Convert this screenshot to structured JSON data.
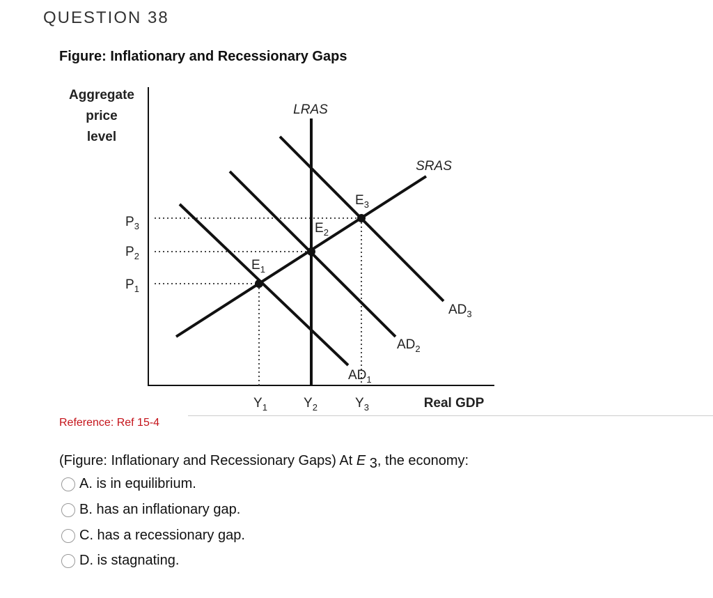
{
  "header": {
    "title": "QUESTION 38"
  },
  "figure": {
    "title": "Figure: Inflationary and Recessionary Gaps",
    "y_axis_label": [
      "Aggregate",
      "price",
      "level"
    ],
    "x_axis_label": "Real GDP",
    "lras": "LRAS",
    "sras": "SRAS",
    "ad": [
      {
        "base": "AD",
        "sub": "1"
      },
      {
        "base": "AD",
        "sub": "2"
      },
      {
        "base": "AD",
        "sub": "3"
      }
    ],
    "price_levels": [
      {
        "base": "P",
        "sub": "1"
      },
      {
        "base": "P",
        "sub": "2"
      },
      {
        "base": "P",
        "sub": "3"
      }
    ],
    "outputs": [
      {
        "base": "Y",
        "sub": "1"
      },
      {
        "base": "Y",
        "sub": "2"
      },
      {
        "base": "Y",
        "sub": "3"
      }
    ],
    "equilibria": [
      {
        "base": "E",
        "sub": "1"
      },
      {
        "base": "E",
        "sub": "2"
      },
      {
        "base": "E",
        "sub": "3"
      }
    ]
  },
  "reference": "Reference: Ref 15-4",
  "question": {
    "prompt": {
      "before": "(Figure: Inflationary and Recessionary Gaps) At ",
      "symbol": "E",
      "sub": "3",
      "after": ", the economy:"
    },
    "options": [
      "A. is in equilibrium.",
      "B. has an inflationary gap.",
      "C. has a recessionary gap.",
      "D. is stagnating."
    ]
  }
}
